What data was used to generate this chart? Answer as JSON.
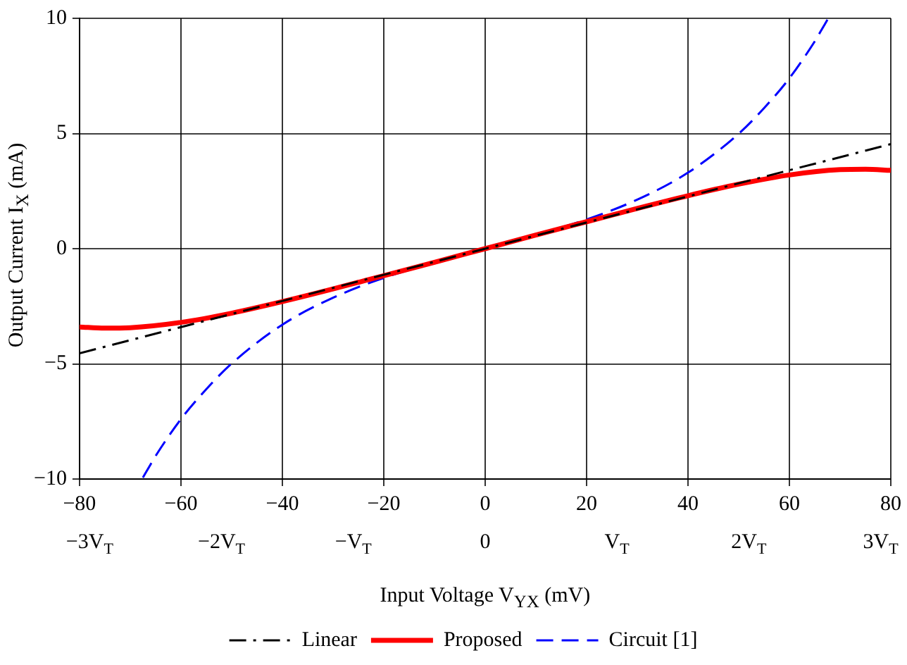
{
  "chart_data": {
    "type": "line",
    "xlabel": "Input Voltage V$_{YX}$ (mV)",
    "ylabel": "Output Current I$_{X}$ (mA)",
    "xlim": [
      -80,
      80
    ],
    "xticks": [
      -80,
      -60,
      -40,
      -20,
      0,
      20,
      40,
      60,
      80
    ],
    "x2lim": [
      -3.077,
      3.077
    ],
    "x2ticks": [
      {
        "value": -3,
        "label": "−3V$_{T}$"
      },
      {
        "value": -2,
        "label": "−2V$_{T}$"
      },
      {
        "value": -1,
        "label": "−V$_{T}$"
      },
      {
        "value": 0,
        "label": "0"
      },
      {
        "value": 1,
        "label": "V$_{T}$"
      },
      {
        "value": 2,
        "label": "2V$_{T}$"
      },
      {
        "value": 3,
        "label": "3V$_{T}$"
      }
    ],
    "ylim": [
      -10,
      10
    ],
    "yticks": [
      -10,
      -5,
      0,
      5,
      10
    ],
    "grid": true,
    "legend": "bottom",
    "marker": "none",
    "series": [
      {
        "name": "Linear",
        "color": "#000000",
        "line_style": "dashdot",
        "x": [
          -80,
          80
        ],
        "values": [
          -4.54,
          4.54
        ]
      },
      {
        "name": "Proposed",
        "color": "#ff0000",
        "line_style": "solid",
        "x": [
          -80,
          -75,
          -70,
          -60,
          -50,
          -40,
          -30,
          -20,
          -10,
          0,
          10,
          20,
          30,
          40,
          50,
          60,
          70,
          75,
          80
        ],
        "values": [
          -3.4,
          -3.45,
          -3.43,
          -3.2,
          -2.8,
          -2.3,
          -1.75,
          -1.17,
          -0.59,
          0,
          0.59,
          1.17,
          1.75,
          2.3,
          2.8,
          3.2,
          3.43,
          3.45,
          3.4
        ]
      },
      {
        "name": "Circuit [1]",
        "color": "#0000ff",
        "line_style": "dashed",
        "x": [
          -67.5,
          -66,
          -65,
          -60,
          -55,
          -50,
          -40,
          -30,
          -20,
          0,
          20,
          30,
          40,
          50,
          55,
          60,
          65,
          66,
          67.5
        ],
        "values": [
          -9.94,
          -9.37,
          -9.0,
          -7.4,
          -6.1,
          -4.99,
          -3.3,
          -2.13,
          -1.27,
          0,
          1.27,
          2.13,
          3.3,
          4.99,
          6.1,
          7.4,
          9.0,
          9.37,
          9.94
        ]
      }
    ]
  }
}
